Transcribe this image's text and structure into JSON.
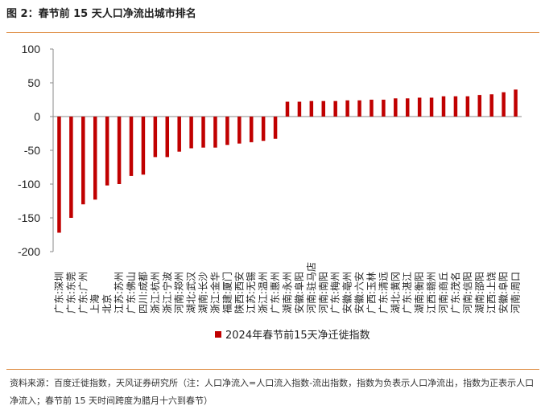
{
  "figure": {
    "title": "图 2：春节前 15 天人口净流出城市排名",
    "source": "资料来源：百度迁徙指数，天风证券研究所（注：人口净流入=人口流入指数-流出指数，指数为负表示人口净流出，指数为正表示人口净流入；春节前 15 天时间跨度为腊月十六到春节）"
  },
  "colors": {
    "bar": "#c00000",
    "axis": "#888888",
    "rule": "#e0914a"
  },
  "chart_data": {
    "type": "bar",
    "title": "",
    "xlabel": "",
    "ylabel": "",
    "ylim": [
      -200,
      100
    ],
    "yticks": [
      100,
      50,
      0,
      -50,
      -100,
      -150,
      -200
    ],
    "grid": false,
    "legend_position": "bottom-center",
    "categories": [
      "广东:深圳",
      "广东:东莞",
      "广东:广州",
      "上海",
      "北京",
      "江苏:苏州",
      "广东:佛山",
      "四川:成都",
      "浙江:杭州",
      "浙江:宁波",
      "河南:郑州",
      "湖北:武汉",
      "湖南:长沙",
      "浙江:金华",
      "福建:厦门",
      "陕西:西安",
      "江苏:无锡",
      "浙江:温州",
      "广东:惠州",
      "湖南:永州",
      "安徽:阜阳",
      "河南:驻马店",
      "河南:南阳",
      "广东:梅州",
      "安徽:亳州",
      "安徽:六安",
      "广西:玉林",
      "广东:清远",
      "湖北:黄冈",
      "广东:湛江",
      "湖南:衡阳",
      "江西:赣州",
      "河南:商丘",
      "广东:茂名",
      "河南:信阳",
      "湖南:邵阳",
      "江西:上饶",
      "安徽:阜阳",
      "河南:周口"
    ],
    "series": [
      {
        "name": "2024年春节前15天净迁徙指数",
        "values": [
          -172,
          -150,
          -130,
          -123,
          -102,
          -100,
          -88,
          -86,
          -60,
          -60,
          -52,
          -47,
          -46,
          -46,
          -42,
          -40,
          -38,
          -36,
          -33,
          22,
          22,
          23,
          23,
          23,
          24,
          24,
          25,
          25,
          27,
          27,
          28,
          28,
          30,
          30,
          30,
          32,
          33,
          36,
          40
        ]
      }
    ]
  }
}
